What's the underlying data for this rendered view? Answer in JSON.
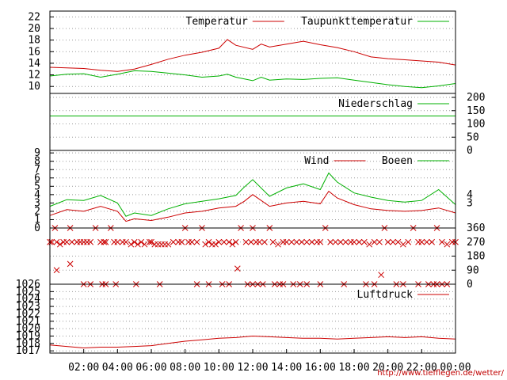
{
  "colors": {
    "red": "#cc0000",
    "green": "#00b000",
    "frame": "#000000",
    "grid": "#999999"
  },
  "credit_text": "http://www.tiefflegen.de/wetter/",
  "chart_data": [
    {
      "id": "temperature",
      "type": "line",
      "grid": true,
      "ylim": [
        8.8,
        23
      ],
      "yticks": [
        10,
        12,
        14,
        16,
        18,
        20,
        22
      ],
      "ytick_labels": [
        "10",
        "12",
        "14",
        "16",
        "18",
        "20",
        "22"
      ],
      "legend_position": "top-right",
      "x_hours": [
        0,
        1,
        2,
        3,
        4,
        5,
        6,
        7,
        8,
        9,
        10,
        10.5,
        11,
        12,
        12.5,
        13,
        14,
        15,
        16,
        17,
        18,
        19,
        20,
        21,
        22,
        23,
        24
      ],
      "series": [
        {
          "name": "Temperatur",
          "color": "red",
          "values": [
            13.3,
            13.2,
            13.1,
            12.8,
            12.6,
            13.0,
            13.8,
            14.7,
            15.4,
            15.9,
            16.6,
            18.1,
            17.1,
            16.4,
            17.3,
            16.8,
            17.3,
            17.8,
            17.2,
            16.7,
            16.0,
            15.1,
            14.8,
            14.6,
            14.4,
            14.2,
            13.7
          ]
        },
        {
          "name": "Taupunkttemperatur",
          "color": "green",
          "values": [
            11.8,
            12.1,
            12.2,
            11.6,
            12.1,
            12.7,
            12.6,
            12.3,
            12.0,
            11.6,
            11.8,
            12.1,
            11.6,
            11.0,
            11.6,
            11.1,
            11.3,
            11.2,
            11.4,
            11.5,
            11.1,
            10.7,
            10.3,
            10.0,
            9.8,
            10.1,
            10.5
          ]
        }
      ]
    },
    {
      "id": "precipitation",
      "type": "line",
      "grid": true,
      "ylim": [
        0,
        215
      ],
      "yticks": [
        0,
        50,
        100,
        150,
        200
      ],
      "ytick_labels": [
        "0",
        "50",
        "100",
        "150",
        "200"
      ],
      "legend_position": "top-right",
      "x_hours": [
        0,
        24
      ],
      "series": [
        {
          "name": "Niederschlag",
          "color": "green",
          "values": [
            130,
            130
          ]
        }
      ]
    },
    {
      "id": "wind",
      "type": "line",
      "grid": true,
      "ylim": [
        0,
        9.3
      ],
      "yticks": [
        0,
        1,
        2,
        3,
        4,
        5,
        6,
        7,
        8,
        9
      ],
      "ytick_labels": [
        "0",
        "1",
        "2",
        "3",
        "4",
        "5",
        "6",
        "7",
        "8",
        "9"
      ],
      "right_ticks": [
        {
          "value": 4,
          "label": "4"
        },
        {
          "value": 3,
          "label": "3"
        }
      ],
      "legend_position": "top-right",
      "x_hours": [
        0,
        1,
        2,
        3,
        4,
        4.5,
        5,
        6,
        7,
        8,
        9,
        10,
        11,
        11.5,
        12,
        13,
        14,
        15,
        16,
        16.5,
        17,
        18,
        19,
        20,
        21,
        22,
        23,
        24
      ],
      "series": [
        {
          "name": "Wind",
          "color": "red",
          "values": [
            1.5,
            2.2,
            2.0,
            2.6,
            2.0,
            0.8,
            1.1,
            0.9,
            1.3,
            1.8,
            2.0,
            2.4,
            2.6,
            3.2,
            4.0,
            2.6,
            3.0,
            3.2,
            2.9,
            4.4,
            3.6,
            2.8,
            2.3,
            2.1,
            2.0,
            2.1,
            2.4,
            1.8
          ]
        },
        {
          "name": "Boeen",
          "color": "green",
          "values": [
            2.6,
            3.4,
            3.3,
            3.9,
            3.0,
            1.4,
            1.8,
            1.5,
            2.3,
            2.9,
            3.2,
            3.5,
            3.9,
            4.9,
            5.8,
            3.8,
            4.8,
            5.3,
            4.6,
            6.6,
            5.5,
            4.2,
            3.7,
            3.3,
            3.1,
            3.3,
            4.6,
            2.8
          ]
        }
      ]
    },
    {
      "id": "wind_direction",
      "type": "scatter",
      "grid": true,
      "ylim": [
        0,
        360
      ],
      "yticks": [
        0,
        90,
        180,
        270,
        360
      ],
      "ytick_labels": [
        "0",
        "90",
        "180",
        "270",
        "360"
      ],
      "marker": "x",
      "series": [
        {
          "color": "red",
          "x": [
            0,
            0.1,
            0.3,
            0.4,
            0.6,
            0.8,
            1.0,
            1.2,
            1.3,
            1.6,
            1.8,
            2.0,
            2.2,
            2.4,
            2.7,
            3.0,
            3.2,
            3.3,
            3.6,
            3.8,
            4.0,
            4.3,
            4.5,
            4.8,
            5.0,
            5.2,
            5.4,
            5.6,
            5.9,
            6.0,
            6.2,
            6.4,
            6.6,
            6.8,
            7.0,
            7.3,
            7.6,
            7.8,
            8.0,
            8.2,
            8.4,
            8.7,
            9.0,
            9.2,
            9.4,
            9.6,
            9.8,
            10.0,
            10.3,
            10.6,
            10.8,
            11.0,
            11.3,
            11.6,
            11.9,
            12.0,
            12.2,
            12.4,
            12.7,
            13.0,
            13.2,
            13.5,
            13.8,
            14.0,
            14.3,
            14.6,
            14.9,
            15.2,
            15.5,
            15.8,
            16.0,
            16.3,
            16.6,
            16.9,
            17.2,
            17.5,
            17.8,
            18.0,
            18.3,
            18.6,
            18.9,
            19.2,
            19.5,
            19.8,
            20.0,
            20.3,
            20.6,
            20.9,
            21.2,
            21.5,
            21.8,
            22.0,
            22.3,
            22.6,
            22.9,
            23.2,
            23.5,
            23.8,
            24.0,
            1.2,
            2.4,
            3.3,
            5.1,
            8.7,
            11.1,
            12.0,
            12.3,
            13.3,
            13.8,
            14.8,
            19.6,
            20.5,
            22.7,
            23.5,
            0.4,
            2.0,
            3.1,
            3.9,
            6.5,
            9.4,
            10.2,
            10.6,
            11.7,
            12.6,
            13.6,
            14.4,
            15.2,
            16.0,
            17.4,
            18.7,
            19.2,
            20.9,
            21.8,
            22.4,
            22.9,
            23.2
          ],
          "y": [
            270,
            270,
            360,
            270,
            255,
            270,
            270,
            360,
            270,
            270,
            270,
            270,
            270,
            270,
            360,
            270,
            270,
            270,
            360,
            270,
            270,
            270,
            270,
            255,
            270,
            255,
            270,
            255,
            270,
            270,
            255,
            255,
            255,
            255,
            255,
            270,
            270,
            270,
            360,
            270,
            270,
            270,
            360,
            255,
            270,
            255,
            255,
            270,
            270,
            270,
            255,
            270,
            360,
            270,
            270,
            360,
            270,
            270,
            270,
            360,
            270,
            255,
            270,
            270,
            270,
            270,
            270,
            270,
            270,
            270,
            270,
            360,
            270,
            270,
            270,
            270,
            270,
            270,
            270,
            270,
            255,
            270,
            270,
            360,
            270,
            270,
            270,
            255,
            270,
            360,
            270,
            270,
            270,
            270,
            360,
            270,
            255,
            270,
            270,
            130,
            0,
            0,
            0,
            0,
            100,
            0,
            0,
            0,
            0,
            0,
            60,
            0,
            0,
            0,
            90,
            0,
            0,
            0,
            0,
            0,
            0,
            0,
            0,
            0,
            0,
            0,
            0,
            0,
            0,
            0,
            0,
            0,
            0,
            0,
            0,
            0
          ]
        }
      ]
    },
    {
      "id": "pressure",
      "type": "line",
      "grid": true,
      "ylim": [
        1016.7,
        1026
      ],
      "yticks": [
        1017,
        1018,
        1019,
        1020,
        1021,
        1022,
        1023,
        1024,
        1025,
        1026
      ],
      "ytick_labels": [
        "1017",
        "1018",
        "1019",
        "1020",
        "1021",
        "1022",
        "1023",
        "1024",
        "1025",
        "1026"
      ],
      "legend_position": "top-right",
      "x_hours": [
        0,
        1,
        2,
        3,
        4,
        5,
        6,
        7,
        8,
        9,
        10,
        11,
        12,
        13,
        14,
        15,
        16,
        17,
        18,
        19,
        20,
        21,
        22,
        23,
        24
      ],
      "series": [
        {
          "name": "Luftdruck",
          "color": "red",
          "values": [
            1017.8,
            1017.6,
            1017.4,
            1017.5,
            1017.5,
            1017.6,
            1017.7,
            1018.0,
            1018.3,
            1018.5,
            1018.7,
            1018.8,
            1019.0,
            1018.9,
            1018.8,
            1018.7,
            1018.7,
            1018.6,
            1018.7,
            1018.8,
            1018.9,
            1018.8,
            1018.9,
            1018.7,
            1018.6
          ]
        }
      ]
    }
  ],
  "x_axis": {
    "ticks": [
      2,
      4,
      6,
      8,
      10,
      12,
      14,
      16,
      18,
      20,
      22,
      24
    ],
    "labels": [
      "02:00",
      "04:00",
      "06:00",
      "08:00",
      "10:00",
      "12:00",
      "14:00",
      "16:00",
      "18:00",
      "20:00",
      "22:00",
      "00:00"
    ],
    "range_hours": [
      0,
      24
    ]
  }
}
